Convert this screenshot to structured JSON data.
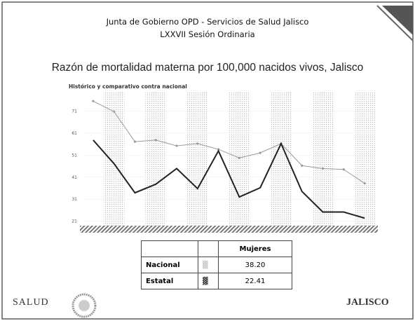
{
  "header": {
    "line1": "Junta de Gobierno OPD - Servicios de Salud Jalisco",
    "line2": "LXXVII Sesión Ordinaria"
  },
  "chart_data": {
    "type": "line",
    "title": "Razón de mortalidad materna por 100,000 nacidos vivos, Jalisco",
    "subtitle": "Histórico y comparativo contra nacional",
    "categories": [
      null,
      null,
      null,
      null,
      null,
      null,
      null,
      null,
      null,
      null,
      null,
      null,
      null,
      null
    ],
    "series": [
      {
        "color": "#9a9a9a",
        "values": [
          75.5,
          70.7,
          57.1,
          57.8,
          55.2,
          56.2,
          53.6,
          49.7,
          52.0,
          56.2,
          46.2,
          44.9,
          44.5,
          38.2
        ]
      },
      {
        "color": "#222222",
        "values": [
          57.8,
          47.1,
          33.9,
          37.8,
          44.9,
          35.8,
          52.9,
          32.0,
          36.2,
          56.2,
          34.5,
          25.2,
          25.2,
          22.41
        ]
      }
    ],
    "ylim": [
      19,
      80
    ],
    "yticks": [
      71,
      61,
      51,
      41,
      31,
      21
    ]
  },
  "table": {
    "header": [
      "",
      "",
      "Mujeres"
    ],
    "rows": [
      [
        "Nacional",
        "38.20"
      ],
      [
        "Estatal",
        "22.41"
      ]
    ]
  },
  "logos": {
    "left": "SALUD",
    "right": "JALISCO"
  }
}
